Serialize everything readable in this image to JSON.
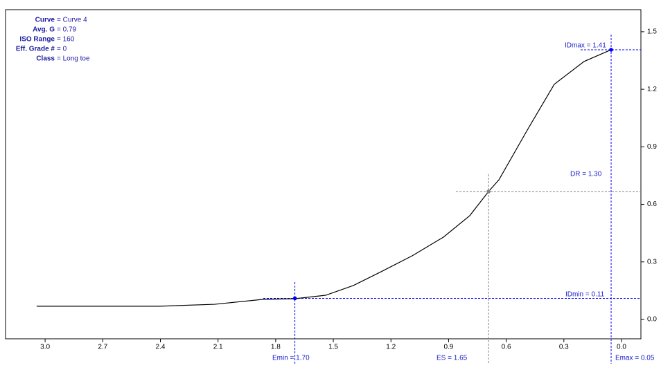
{
  "chart_data": {
    "type": "line",
    "info": [
      {
        "label": "Curve",
        "value": "= Curve 4"
      },
      {
        "label": "Avg. G",
        "value": "= 0.79"
      },
      {
        "label": "ISO Range",
        "value": "= 160"
      },
      {
        "label": "Eff. Grade #",
        "value": "= 0"
      },
      {
        "label": "Class",
        "value": "= Long toe"
      }
    ],
    "x": [
      3.044,
      2.405,
      2.117,
      1.864,
      1.7,
      1.54,
      1.396,
      1.251,
      1.089,
      0.927,
      0.79,
      0.692,
      0.638,
      0.494,
      0.35,
      0.195,
      0.054
    ],
    "series": [
      {
        "color": "#000000",
        "values": [
          0.069,
          0.069,
          0.079,
          0.105,
          0.108,
          0.126,
          0.177,
          0.249,
          0.332,
          0.429,
          0.541,
          0.667,
          0.728,
          0.981,
          1.226,
          1.345,
          1.406
        ]
      }
    ],
    "points": [
      {
        "x": 1.7,
        "y": 0.11,
        "color": "#0000ff"
      },
      {
        "x": 0.692,
        "y": 0.667,
        "color": "#808080"
      },
      {
        "x": 0.054,
        "y": 1.406,
        "color": "#0000ff"
      }
    ],
    "annotations": [
      "Emin = 1.70",
      "ES = 1.65",
      "Emax = 0.05",
      "IDmin = 0.11",
      "DR = 1.30",
      "IDmax = 1.41"
    ],
    "xlim": [
      3.206,
      -0.101
    ],
    "ylim": [
      -0.101,
      1.615
    ],
    "xticks": [
      {
        "value": 3,
        "label": "3.0"
      },
      2.7,
      2.4,
      2.1,
      1.8,
      1.5,
      1.2,
      0.9,
      0.6,
      0.3,
      {
        "value": 0,
        "label": "0.0"
      }
    ],
    "yticks": [
      {
        "value": 0,
        "label": "0.0"
      },
      0.3,
      0.6,
      0.9,
      1.2,
      1.5
    ]
  }
}
